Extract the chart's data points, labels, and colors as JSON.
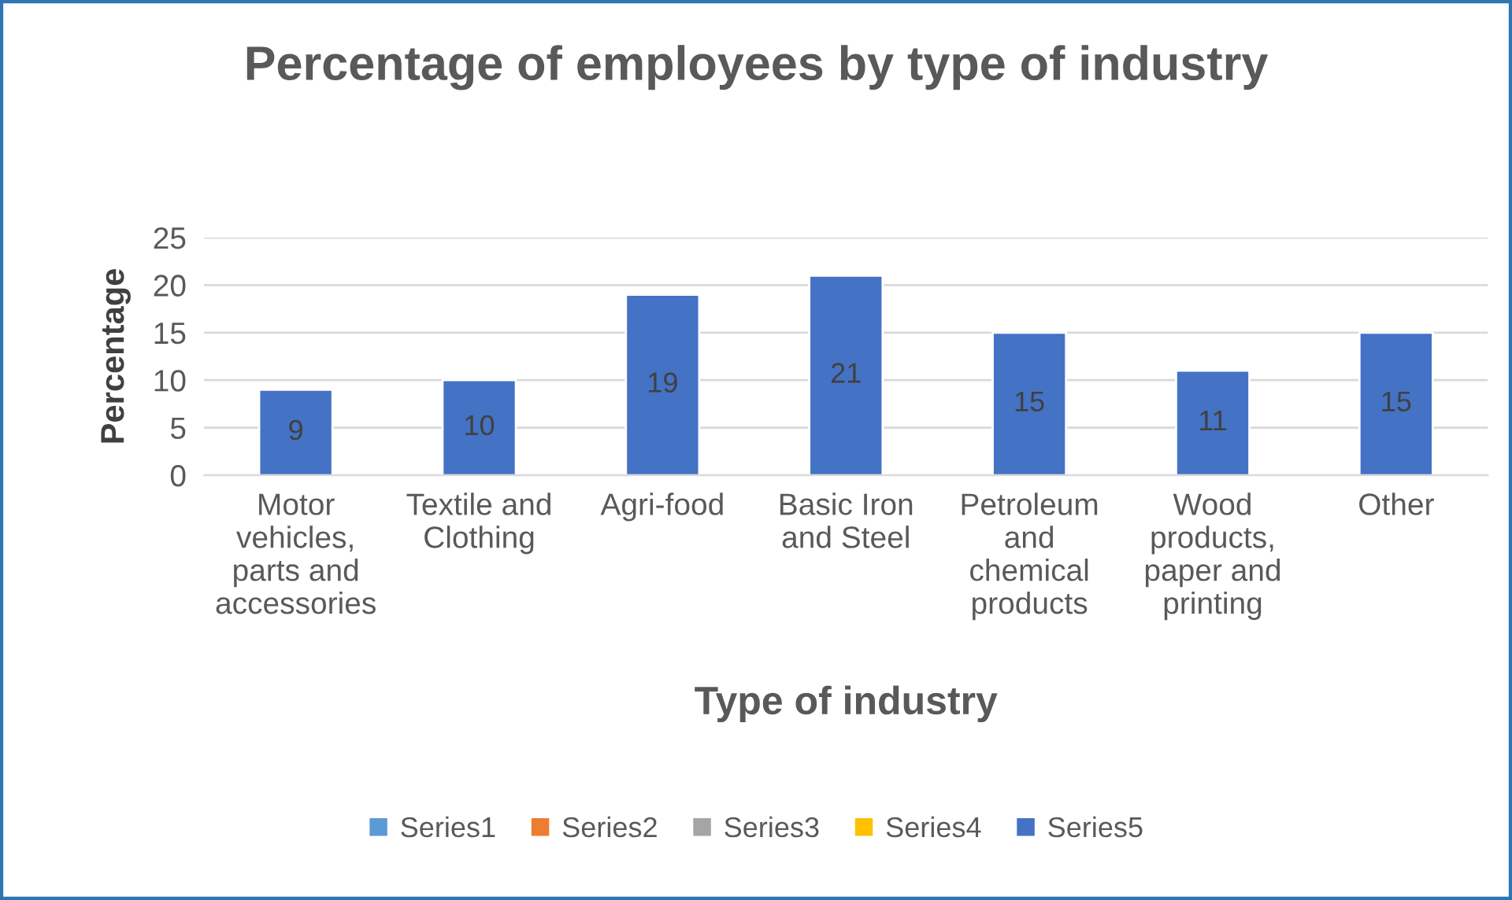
{
  "chart_data": {
    "type": "bar",
    "title": "Percentage of employees by type of industry",
    "xlabel": "Type of industry",
    "ylabel": "Percentage",
    "categories": [
      "Motor vehicles, parts and accessories",
      "Textile and Clothing",
      "Agri-food",
      "Basic Iron and Steel",
      "Petroleum and chemical products",
      "Wood products, paper and printing",
      "Other"
    ],
    "series": [
      {
        "name": "Series1",
        "color": "#5b9bd5",
        "values": [
          null,
          null,
          null,
          null,
          null,
          null,
          null
        ]
      },
      {
        "name": "Series2",
        "color": "#ed7d31",
        "values": [
          null,
          null,
          null,
          null,
          null,
          null,
          null
        ]
      },
      {
        "name": "Series3",
        "color": "#a5a5a5",
        "values": [
          null,
          null,
          null,
          null,
          null,
          null,
          null
        ]
      },
      {
        "name": "Series4",
        "color": "#ffc000",
        "values": [
          null,
          null,
          null,
          null,
          null,
          null,
          null
        ]
      },
      {
        "name": "Series5",
        "color": "#4472c4",
        "values": [
          9,
          10,
          19,
          21,
          15,
          11,
          15
        ]
      }
    ],
    "ylim": [
      0,
      25
    ],
    "yticks": [
      0,
      5,
      10,
      15,
      20,
      25
    ],
    "grid": "y",
    "legend": "bottom",
    "data_labels": true
  }
}
